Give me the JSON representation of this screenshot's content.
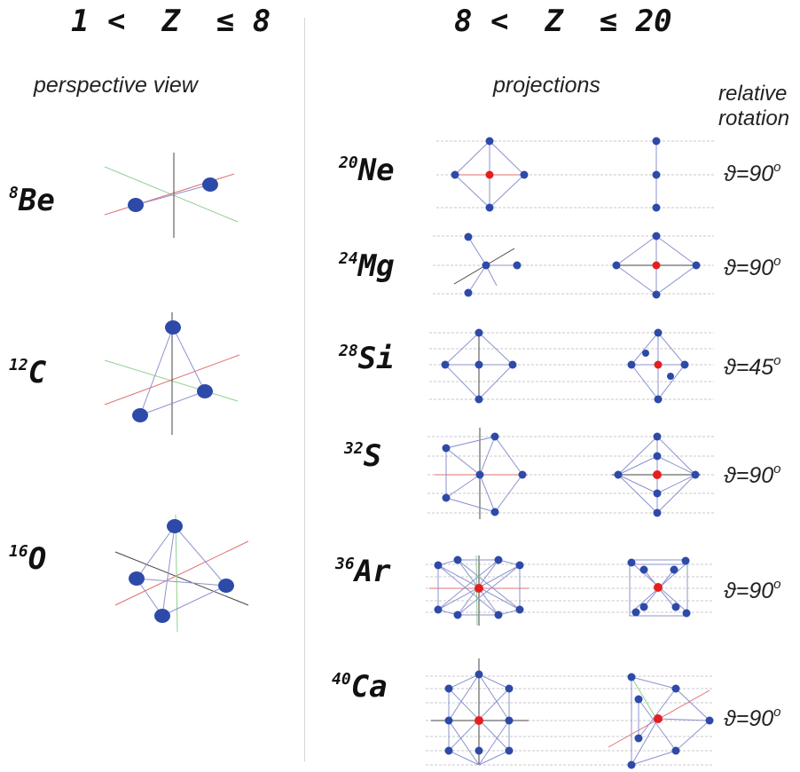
{
  "header": {
    "left": "1 <  Z  ≤ 8",
    "right": "8 <  Z  ≤ 20"
  },
  "subheaders": {
    "perspective": "perspective view",
    "projections": "projections",
    "relative_rotation_line1": "relative",
    "relative_rotation_line2": "rotation"
  },
  "nuclei_left": [
    {
      "mass": "8",
      "symbol": "Be"
    },
    {
      "mass": "12",
      "symbol": "C"
    },
    {
      "mass": "16",
      "symbol": "O"
    }
  ],
  "nuclei_right": [
    {
      "mass": "20",
      "symbol": "Ne",
      "rotation": "ϑ=90",
      "unit": "o"
    },
    {
      "mass": "24",
      "symbol": "Mg",
      "rotation": "ϑ=90",
      "unit": "o"
    },
    {
      "mass": "28",
      "symbol": "Si",
      "rotation": "ϑ=45",
      "unit": "o"
    },
    {
      "mass": "32",
      "symbol": "S",
      "rotation": "ϑ=90",
      "unit": "o"
    },
    {
      "mass": "36",
      "symbol": "Ar",
      "rotation": "ϑ=90",
      "unit": "o"
    },
    {
      "mass": "40",
      "symbol": "Ca",
      "rotation": "ϑ=90",
      "unit": "o"
    }
  ],
  "colors": {
    "node": "#2e4aa8",
    "center": "#e41f1f",
    "edge": "#7d86c9",
    "axis_red": "#e06060",
    "axis_green": "#7fc97f",
    "axis_dark": "#333333"
  }
}
